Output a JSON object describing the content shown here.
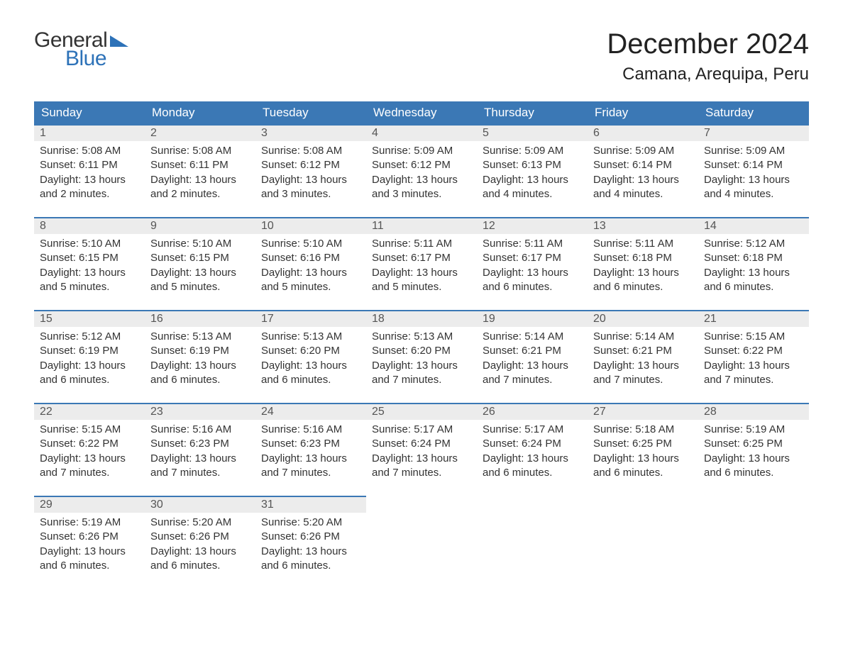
{
  "logo": {
    "text_general": "General",
    "text_blue": "Blue",
    "tri_color": "#2d72b8"
  },
  "title": "December 2024",
  "location": "Camana, Arequipa, Peru",
  "colors": {
    "header_bg": "#3b78b5",
    "header_text": "#ffffff",
    "daynum_bg": "#ececec",
    "daynum_text": "#555555",
    "body_text": "#333333",
    "accent_border": "#3b78b5",
    "page_bg": "#ffffff"
  },
  "day_names": [
    "Sunday",
    "Monday",
    "Tuesday",
    "Wednesday",
    "Thursday",
    "Friday",
    "Saturday"
  ],
  "labels": {
    "sunrise": "Sunrise:",
    "sunset": "Sunset:",
    "daylight": "Daylight:"
  },
  "weeks": [
    [
      {
        "n": "1",
        "sr": "5:08 AM",
        "ss": "6:11 PM",
        "dl": "13 hours and 2 minutes."
      },
      {
        "n": "2",
        "sr": "5:08 AM",
        "ss": "6:11 PM",
        "dl": "13 hours and 2 minutes."
      },
      {
        "n": "3",
        "sr": "5:08 AM",
        "ss": "6:12 PM",
        "dl": "13 hours and 3 minutes."
      },
      {
        "n": "4",
        "sr": "5:09 AM",
        "ss": "6:12 PM",
        "dl": "13 hours and 3 minutes."
      },
      {
        "n": "5",
        "sr": "5:09 AM",
        "ss": "6:13 PM",
        "dl": "13 hours and 4 minutes."
      },
      {
        "n": "6",
        "sr": "5:09 AM",
        "ss": "6:14 PM",
        "dl": "13 hours and 4 minutes."
      },
      {
        "n": "7",
        "sr": "5:09 AM",
        "ss": "6:14 PM",
        "dl": "13 hours and 4 minutes."
      }
    ],
    [
      {
        "n": "8",
        "sr": "5:10 AM",
        "ss": "6:15 PM",
        "dl": "13 hours and 5 minutes."
      },
      {
        "n": "9",
        "sr": "5:10 AM",
        "ss": "6:15 PM",
        "dl": "13 hours and 5 minutes."
      },
      {
        "n": "10",
        "sr": "5:10 AM",
        "ss": "6:16 PM",
        "dl": "13 hours and 5 minutes."
      },
      {
        "n": "11",
        "sr": "5:11 AM",
        "ss": "6:17 PM",
        "dl": "13 hours and 5 minutes."
      },
      {
        "n": "12",
        "sr": "5:11 AM",
        "ss": "6:17 PM",
        "dl": "13 hours and 6 minutes."
      },
      {
        "n": "13",
        "sr": "5:11 AM",
        "ss": "6:18 PM",
        "dl": "13 hours and 6 minutes."
      },
      {
        "n": "14",
        "sr": "5:12 AM",
        "ss": "6:18 PM",
        "dl": "13 hours and 6 minutes."
      }
    ],
    [
      {
        "n": "15",
        "sr": "5:12 AM",
        "ss": "6:19 PM",
        "dl": "13 hours and 6 minutes."
      },
      {
        "n": "16",
        "sr": "5:13 AM",
        "ss": "6:19 PM",
        "dl": "13 hours and 6 minutes."
      },
      {
        "n": "17",
        "sr": "5:13 AM",
        "ss": "6:20 PM",
        "dl": "13 hours and 6 minutes."
      },
      {
        "n": "18",
        "sr": "5:13 AM",
        "ss": "6:20 PM",
        "dl": "13 hours and 7 minutes."
      },
      {
        "n": "19",
        "sr": "5:14 AM",
        "ss": "6:21 PM",
        "dl": "13 hours and 7 minutes."
      },
      {
        "n": "20",
        "sr": "5:14 AM",
        "ss": "6:21 PM",
        "dl": "13 hours and 7 minutes."
      },
      {
        "n": "21",
        "sr": "5:15 AM",
        "ss": "6:22 PM",
        "dl": "13 hours and 7 minutes."
      }
    ],
    [
      {
        "n": "22",
        "sr": "5:15 AM",
        "ss": "6:22 PM",
        "dl": "13 hours and 7 minutes."
      },
      {
        "n": "23",
        "sr": "5:16 AM",
        "ss": "6:23 PM",
        "dl": "13 hours and 7 minutes."
      },
      {
        "n": "24",
        "sr": "5:16 AM",
        "ss": "6:23 PM",
        "dl": "13 hours and 7 minutes."
      },
      {
        "n": "25",
        "sr": "5:17 AM",
        "ss": "6:24 PM",
        "dl": "13 hours and 7 minutes."
      },
      {
        "n": "26",
        "sr": "5:17 AM",
        "ss": "6:24 PM",
        "dl": "13 hours and 6 minutes."
      },
      {
        "n": "27",
        "sr": "5:18 AM",
        "ss": "6:25 PM",
        "dl": "13 hours and 6 minutes."
      },
      {
        "n": "28",
        "sr": "5:19 AM",
        "ss": "6:25 PM",
        "dl": "13 hours and 6 minutes."
      }
    ],
    [
      {
        "n": "29",
        "sr": "5:19 AM",
        "ss": "6:26 PM",
        "dl": "13 hours and 6 minutes."
      },
      {
        "n": "30",
        "sr": "5:20 AM",
        "ss": "6:26 PM",
        "dl": "13 hours and 6 minutes."
      },
      {
        "n": "31",
        "sr": "5:20 AM",
        "ss": "6:26 PM",
        "dl": "13 hours and 6 minutes."
      },
      null,
      null,
      null,
      null
    ]
  ]
}
